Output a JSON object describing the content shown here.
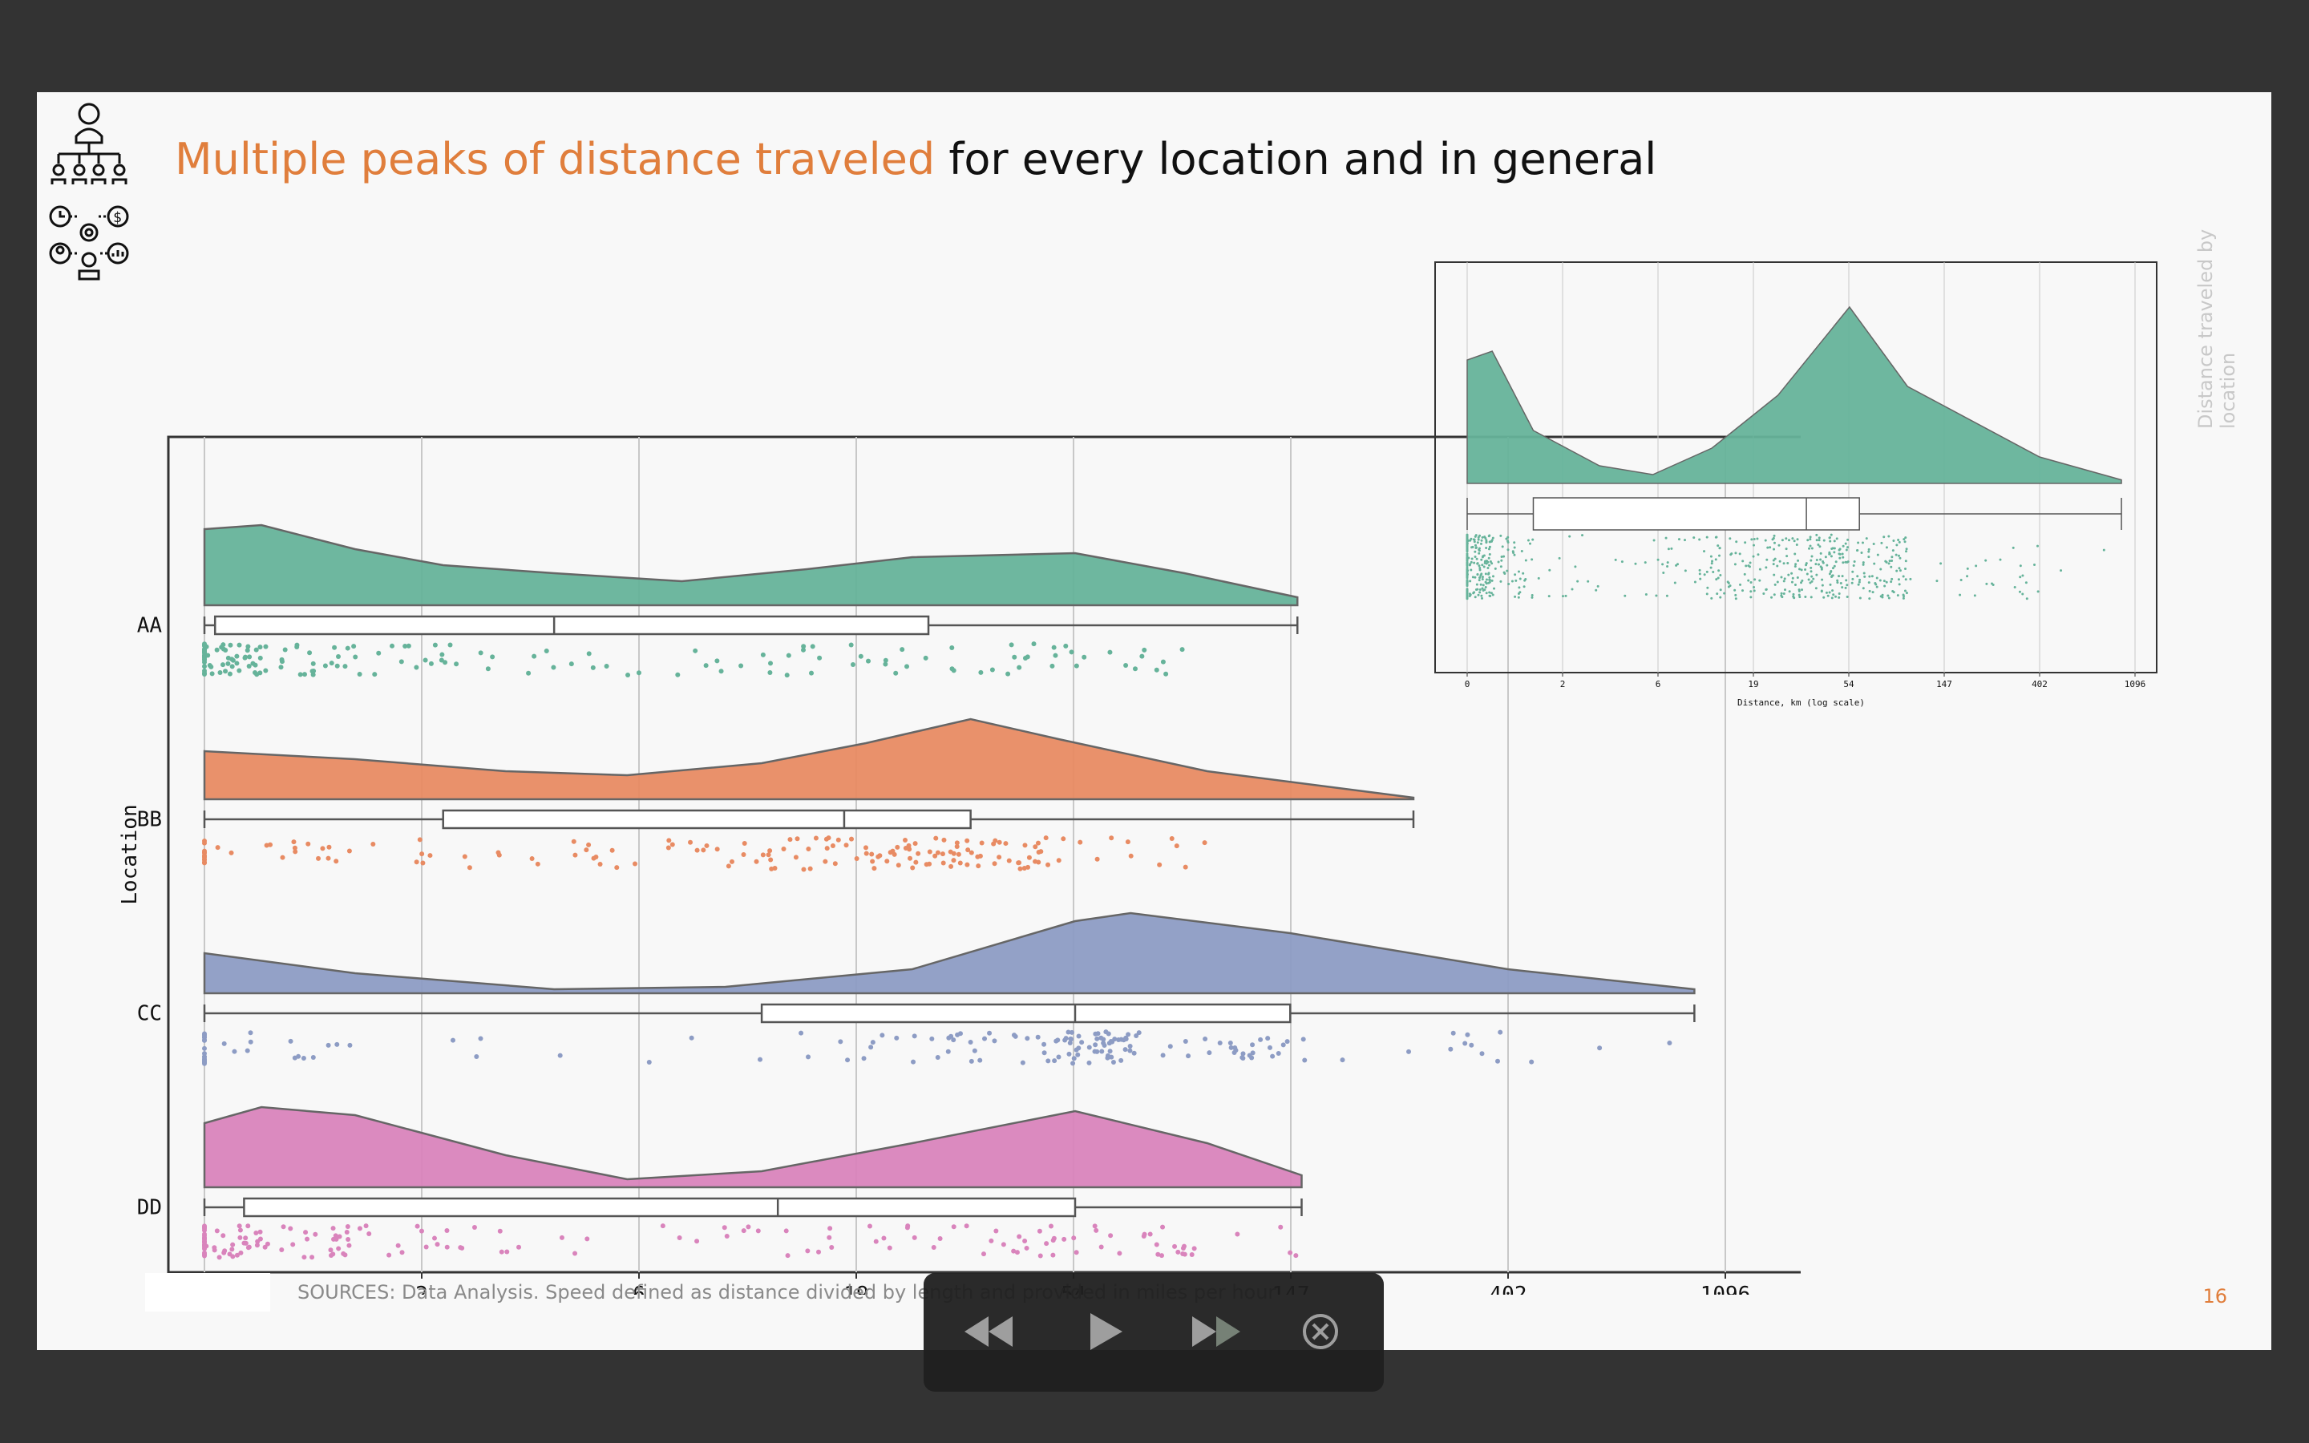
{
  "slide": {
    "title_accent": "Multiple peaks of distance traveled",
    "title_rest": " for every location and in general",
    "side_label": "Distance traveled by location",
    "sources": "SOURCES: Data Analysis. Speed defined as distance divided by length and provided in miles per hour",
    "page_number": "16"
  },
  "icons": [
    "org-chart-icon",
    "workflow-icon"
  ],
  "player": {
    "buttons": [
      "rewind-icon",
      "play-icon",
      "fast-forward-icon",
      "close-icon"
    ]
  },
  "colors": {
    "accent": "#E07E3C",
    "AA": "#66B39A",
    "BB": "#E88B63",
    "CC": "#8D9CC4",
    "DD": "#D984BC"
  },
  "chart_data": [
    {
      "type": "raincloud",
      "xlabel": "Distance, km (log scale)",
      "ylabel": "Location",
      "x_ticks": [
        "0",
        "2",
        "6",
        "19",
        "54",
        "147",
        "402",
        "1096"
      ],
      "x_scale": "log",
      "grid": true,
      "series": [
        {
          "name": "AA",
          "color": "#66B39A",
          "box": {
            "min": 0,
            "q1": 0.05,
            "median": 4,
            "q3": 27,
            "max": 152
          },
          "density": [
            [
              0,
              0.95
            ],
            [
              0.3,
              1.0
            ],
            [
              1,
              0.7
            ],
            [
              2,
              0.5
            ],
            [
              4,
              0.4
            ],
            [
              8,
              0.3
            ],
            [
              15,
              0.45
            ],
            [
              25,
              0.6
            ],
            [
              54,
              0.65
            ],
            [
              90,
              0.4
            ],
            [
              152,
              0.1
            ]
          ]
        },
        {
          "name": "BB",
          "color": "#E88B63",
          "box": {
            "min": 0,
            "q1": 2,
            "median": 18,
            "q3": 33,
            "max": 260
          },
          "density": [
            [
              0,
              0.6
            ],
            [
              1,
              0.5
            ],
            [
              3,
              0.35
            ],
            [
              6,
              0.3
            ],
            [
              12,
              0.45
            ],
            [
              20,
              0.7
            ],
            [
              33,
              1.0
            ],
            [
              50,
              0.75
            ],
            [
              100,
              0.35
            ],
            [
              260,
              0.02
            ]
          ]
        },
        {
          "name": "CC",
          "color": "#8D9CC4",
          "box": {
            "min": 0,
            "q1": 12,
            "median": 54,
            "q3": 147,
            "max": 950
          },
          "density": [
            [
              0,
              0.5
            ],
            [
              1,
              0.25
            ],
            [
              4,
              0.05
            ],
            [
              10,
              0.08
            ],
            [
              25,
              0.3
            ],
            [
              54,
              0.9
            ],
            [
              70,
              1.0
            ],
            [
              147,
              0.75
            ],
            [
              402,
              0.3
            ],
            [
              950,
              0.05
            ]
          ]
        },
        {
          "name": "DD",
          "color": "#D984BC",
          "box": {
            "min": 0,
            "q1": 0.2,
            "median": 13,
            "q3": 54,
            "max": 155
          },
          "density": [
            [
              0,
              0.8
            ],
            [
              0.3,
              1.0
            ],
            [
              1,
              0.9
            ],
            [
              3,
              0.4
            ],
            [
              6,
              0.1
            ],
            [
              12,
              0.2
            ],
            [
              25,
              0.55
            ],
            [
              54,
              0.95
            ],
            [
              100,
              0.55
            ],
            [
              155,
              0.15
            ]
          ]
        }
      ]
    },
    {
      "type": "raincloud",
      "xlabel": "Distance, km (log scale)",
      "x_ticks": [
        "0",
        "2",
        "6",
        "19",
        "54",
        "147",
        "402",
        "1096"
      ],
      "x_scale": "log",
      "grid": true,
      "series": [
        {
          "name": "",
          "color": "#66B39A",
          "box": {
            "min": 0,
            "q1": 1,
            "median": 34,
            "q3": 60,
            "max": 950
          },
          "density": [
            [
              0,
              0.7
            ],
            [
              0.3,
              0.75
            ],
            [
              1,
              0.3
            ],
            [
              3,
              0.1
            ],
            [
              6,
              0.05
            ],
            [
              12,
              0.2
            ],
            [
              25,
              0.5
            ],
            [
              54,
              1.0
            ],
            [
              100,
              0.55
            ],
            [
              402,
              0.15
            ],
            [
              950,
              0.02
            ]
          ]
        }
      ]
    }
  ]
}
